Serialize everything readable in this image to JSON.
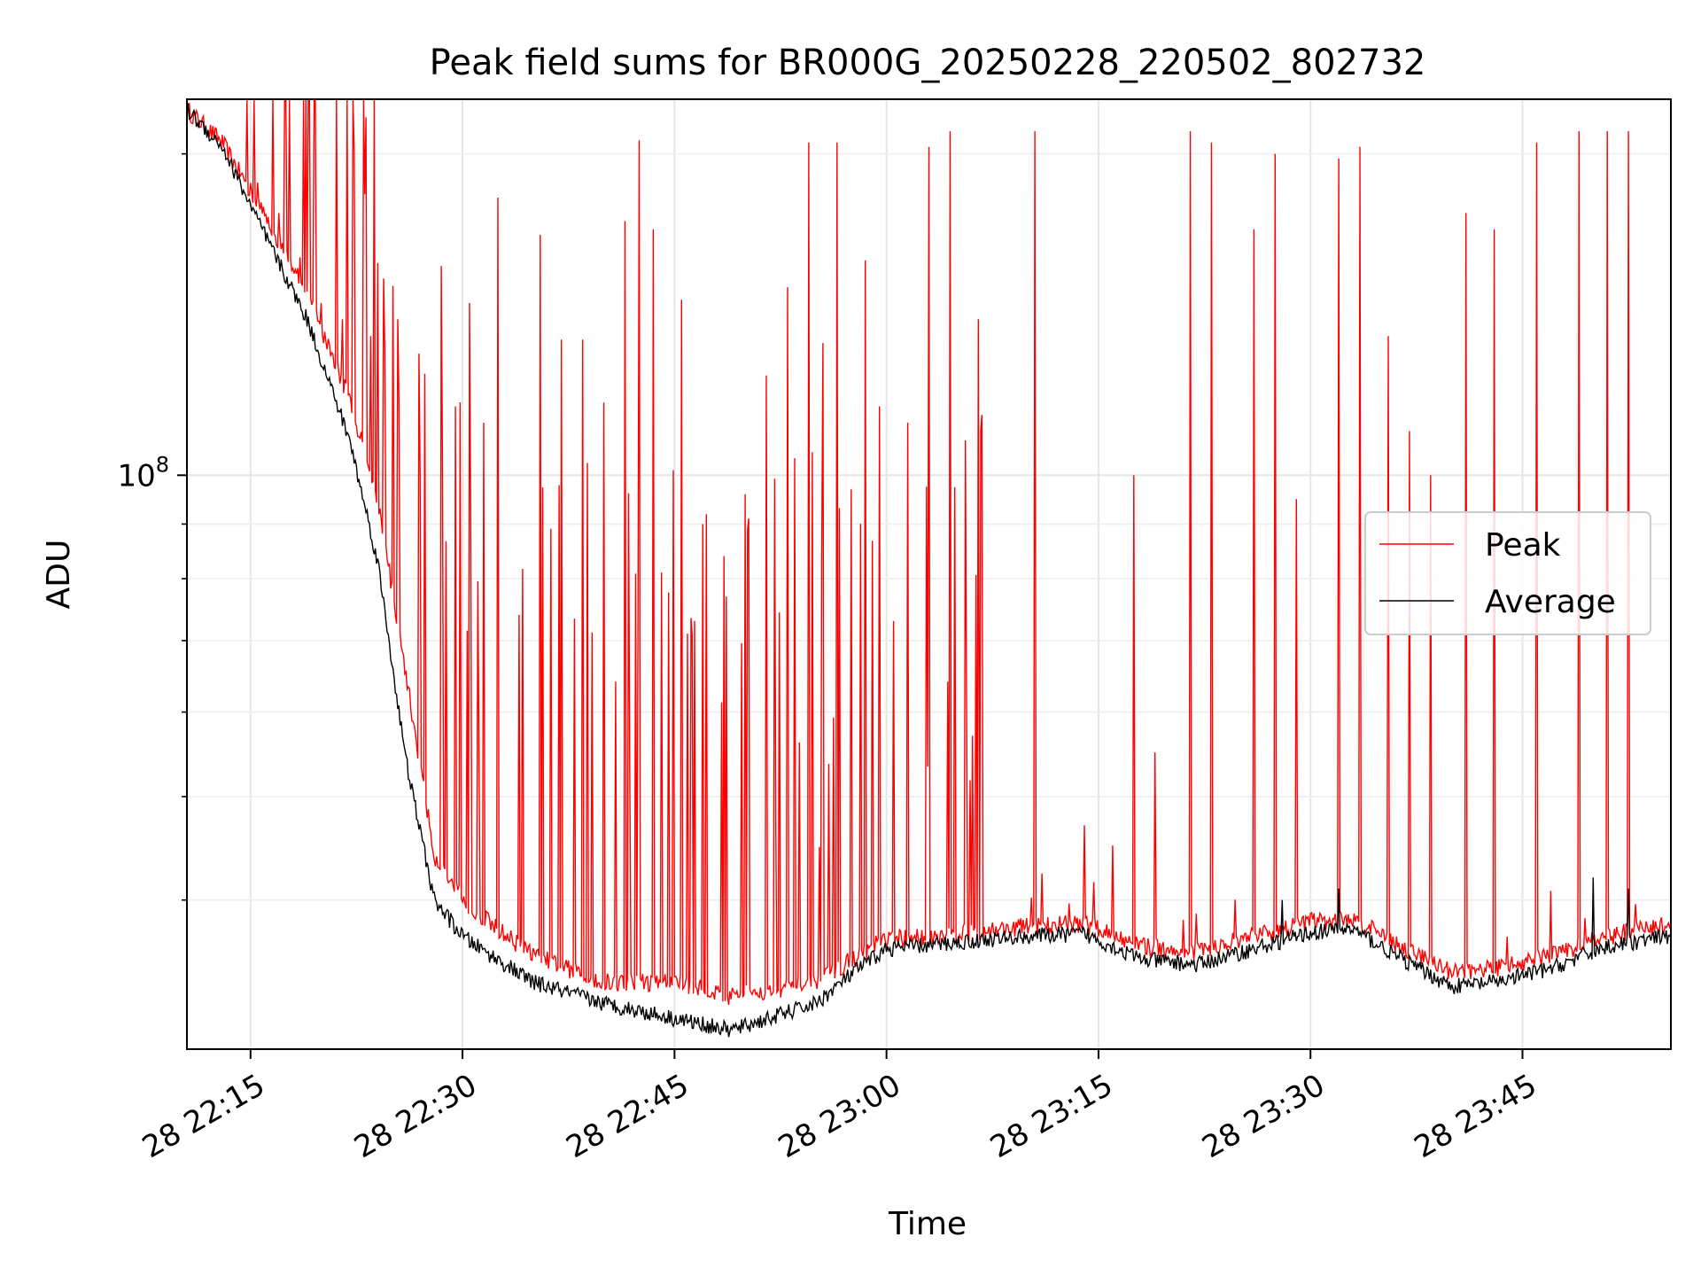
{
  "chart_data": {
    "type": "line",
    "title": "Peak field sums for BR000G_20250228_220502_802732",
    "xlabel": "Time",
    "ylabel": "ADU",
    "y_scale": "log",
    "ylim": [
      29000000,
      225000000
    ],
    "xlim": [
      "2025-02-28 22:10:30",
      "2025-02-28 23:55:30"
    ],
    "x_ticks": [
      {
        "time": "2025-02-28 22:15:00",
        "label": "28 22:15"
      },
      {
        "time": "2025-02-28 22:30:00",
        "label": "28 22:30"
      },
      {
        "time": "2025-02-28 22:45:00",
        "label": "28 22:45"
      },
      {
        "time": "2025-02-28 23:00:00",
        "label": "28 23:00"
      },
      {
        "time": "2025-02-28 23:15:00",
        "label": "28 23:15"
      },
      {
        "time": "2025-02-28 23:30:00",
        "label": "28 23:30"
      },
      {
        "time": "2025-02-28 23:45:00",
        "label": "28 23:45"
      }
    ],
    "y_ticks": [
      {
        "value": 100000000,
        "label_base": "10",
        "label_exp": "8"
      }
    ],
    "y_minor_ticks": [
      40000000,
      50000000,
      60000000,
      70000000,
      80000000,
      90000000,
      200000000
    ],
    "grid": true,
    "legend_position": "center-right",
    "series": [
      {
        "name": "Peak",
        "color": "#ff0000",
        "baseline": [
          [
            "2025-02-28 22:10:30",
            220000000
          ],
          [
            "2025-02-28 22:13:00",
            205000000
          ],
          [
            "2025-02-28 22:16:00",
            175000000
          ],
          [
            "2025-02-28 22:19:00",
            148000000
          ],
          [
            "2025-02-28 22:22:00",
            118000000
          ],
          [
            "2025-02-28 22:24:00",
            95000000
          ],
          [
            "2025-02-28 22:26:00",
            65000000
          ],
          [
            "2025-02-28 22:28:00",
            44000000
          ],
          [
            "2025-02-28 22:30:00",
            40000000
          ],
          [
            "2025-02-28 22:32:00",
            38000000
          ],
          [
            "2025-02-28 22:35:00",
            35500000
          ],
          [
            "2025-02-28 22:40:00",
            33500000
          ],
          [
            "2025-02-28 22:45:00",
            33500000
          ],
          [
            "2025-02-28 22:49:00",
            32500000
          ],
          [
            "2025-02-28 22:55:00",
            33500000
          ],
          [
            "2025-02-28 22:58:00",
            35500000
          ],
          [
            "2025-02-28 23:00:00",
            36800000
          ],
          [
            "2025-02-28 23:05:00",
            37200000
          ],
          [
            "2025-02-28 23:10:00",
            37800000
          ],
          [
            "2025-02-28 23:14:00",
            38000000
          ],
          [
            "2025-02-28 23:18:00",
            36200000
          ],
          [
            "2025-02-28 23:22:00",
            35800000
          ],
          [
            "2025-02-28 23:26:00",
            37000000
          ],
          [
            "2025-02-28 23:30:00",
            38200000
          ],
          [
            "2025-02-28 23:33:00",
            38400000
          ],
          [
            "2025-02-28 23:36:00",
            36500000
          ],
          [
            "2025-02-28 23:40:00",
            34200000
          ],
          [
            "2025-02-28 23:43:00",
            34500000
          ],
          [
            "2025-02-28 23:47:00",
            35500000
          ],
          [
            "2025-02-28 23:51:00",
            37000000
          ],
          [
            "2025-02-28 23:55:30",
            38000000
          ]
        ],
        "spikes": [
          [
            "2025-02-28 22:15:30",
            188000000
          ],
          [
            "2025-02-28 22:17:00",
            176000000
          ],
          [
            "2025-02-28 22:18:30",
            160000000
          ],
          [
            "2025-02-28 22:20:00",
            145000000
          ],
          [
            "2025-02-28 22:21:30",
            140000000
          ],
          [
            "2025-02-28 22:23:30",
            135000000
          ],
          [
            "2025-02-28 22:24:30",
            132000000
          ],
          [
            "2025-02-28 22:25:30",
            118000000
          ],
          [
            "2025-02-28 22:27:00",
            100000000
          ],
          [
            "2025-02-28 22:28:30",
            157000000
          ],
          [
            "2025-02-28 22:29:30",
            116000000
          ],
          [
            "2025-02-28 22:30:30",
            145000000
          ],
          [
            "2025-02-28 22:31:30",
            112000000
          ],
          [
            "2025-02-28 22:32:30",
            182000000
          ],
          [
            "2025-02-28 22:34:00",
            74000000
          ],
          [
            "2025-02-28 22:35:30",
            168000000
          ],
          [
            "2025-02-28 22:37:00",
            134000000
          ],
          [
            "2025-02-28 22:38:30",
            134000000
          ],
          [
            "2025-02-28 22:40:00",
            117000000
          ],
          [
            "2025-02-28 22:41:30",
            173000000
          ],
          [
            "2025-02-28 22:42:30",
            206000000
          ],
          [
            "2025-02-28 22:43:30",
            170000000
          ],
          [
            "2025-02-28 22:45:30",
            146000000
          ],
          [
            "2025-02-28 22:47:00",
            90000000
          ],
          [
            "2025-02-28 22:48:30",
            84000000
          ],
          [
            "2025-02-28 22:50:00",
            96000000
          ],
          [
            "2025-02-28 22:51:30",
            124000000
          ],
          [
            "2025-02-28 22:53:00",
            150000000
          ],
          [
            "2025-02-28 22:54:30",
            205000000
          ],
          [
            "2025-02-28 22:55:30",
            133000000
          ],
          [
            "2025-02-28 22:56:30",
            205000000
          ],
          [
            "2025-02-28 22:57:30",
            97000000
          ],
          [
            "2025-02-28 22:58:30",
            159000000
          ],
          [
            "2025-02-28 22:59:30",
            116000000
          ],
          [
            "2025-02-28 23:01:30",
            112000000
          ],
          [
            "2025-02-28 23:03:00",
            203000000
          ],
          [
            "2025-02-28 23:04:30",
            210000000
          ],
          [
            "2025-02-28 23:06:30",
            140000000
          ],
          [
            "2025-02-28 23:10:30",
            210000000
          ],
          [
            "2025-02-28 23:14:00",
            47000000
          ],
          [
            "2025-02-28 23:16:00",
            45000000
          ],
          [
            "2025-02-28 23:17:30",
            100000000
          ],
          [
            "2025-02-28 23:19:00",
            55000000
          ],
          [
            "2025-02-28 23:21:30",
            210000000
          ],
          [
            "2025-02-28 23:23:00",
            205000000
          ],
          [
            "2025-02-28 23:26:00",
            170000000
          ],
          [
            "2025-02-28 23:27:30",
            200000000
          ],
          [
            "2025-02-28 23:29:00",
            95000000
          ],
          [
            "2025-02-28 23:32:00",
            198000000
          ],
          [
            "2025-02-28 23:33:30",
            203000000
          ],
          [
            "2025-02-28 23:35:30",
            135000000
          ],
          [
            "2025-02-28 23:37:00",
            110000000
          ],
          [
            "2025-02-28 23:38:30",
            100000000
          ],
          [
            "2025-02-28 23:41:00",
            176000000
          ],
          [
            "2025-02-28 23:43:00",
            170000000
          ],
          [
            "2025-02-28 23:46:00",
            205000000
          ],
          [
            "2025-02-28 23:49:00",
            210000000
          ],
          [
            "2025-02-28 23:51:00",
            210000000
          ],
          [
            "2025-02-28 23:52:30",
            210000000
          ]
        ]
      },
      {
        "name": "Average",
        "color": "#000000",
        "baseline": [
          [
            "2025-02-28 22:10:30",
            220000000
          ],
          [
            "2025-02-28 22:13:00",
            203000000
          ],
          [
            "2025-02-28 22:16:00",
            168000000
          ],
          [
            "2025-02-28 22:19:00",
            140000000
          ],
          [
            "2025-02-28 22:22:00",
            108000000
          ],
          [
            "2025-02-28 22:24:00",
            83000000
          ],
          [
            "2025-02-28 22:26:00",
            54000000
          ],
          [
            "2025-02-28 22:28:00",
            40000000
          ],
          [
            "2025-02-28 22:30:00",
            37000000
          ],
          [
            "2025-02-28 22:32:00",
            35500000
          ],
          [
            "2025-02-28 22:35:00",
            33500000
          ],
          [
            "2025-02-28 22:40:00",
            32000000
          ],
          [
            "2025-02-28 22:45:00",
            31000000
          ],
          [
            "2025-02-28 22:49:00",
            30200000
          ],
          [
            "2025-02-28 22:55:00",
            32000000
          ],
          [
            "2025-02-28 22:58:00",
            34500000
          ],
          [
            "2025-02-28 23:00:00",
            36000000
          ],
          [
            "2025-02-28 23:05:00",
            36500000
          ],
          [
            "2025-02-28 23:10:00",
            37000000
          ],
          [
            "2025-02-28 23:14:00",
            37200000
          ],
          [
            "2025-02-28 23:18:00",
            35200000
          ],
          [
            "2025-02-28 23:22:00",
            34800000
          ],
          [
            "2025-02-28 23:26:00",
            36000000
          ],
          [
            "2025-02-28 23:30:00",
            37300000
          ],
          [
            "2025-02-28 23:33:00",
            37600000
          ],
          [
            "2025-02-28 23:36:00",
            35500000
          ],
          [
            "2025-02-28 23:40:00",
            33200000
          ],
          [
            "2025-02-28 23:43:00",
            33500000
          ],
          [
            "2025-02-28 23:47:00",
            34500000
          ],
          [
            "2025-02-28 23:51:00",
            36200000
          ],
          [
            "2025-02-28 23:55:30",
            37000000
          ]
        ],
        "spikes": [
          [
            "2025-02-28 23:28:00",
            40000000
          ],
          [
            "2025-02-28 23:32:00",
            41000000
          ],
          [
            "2025-02-28 23:50:00",
            42000000
          ],
          [
            "2025-02-28 23:52:30",
            41000000
          ]
        ]
      }
    ]
  }
}
